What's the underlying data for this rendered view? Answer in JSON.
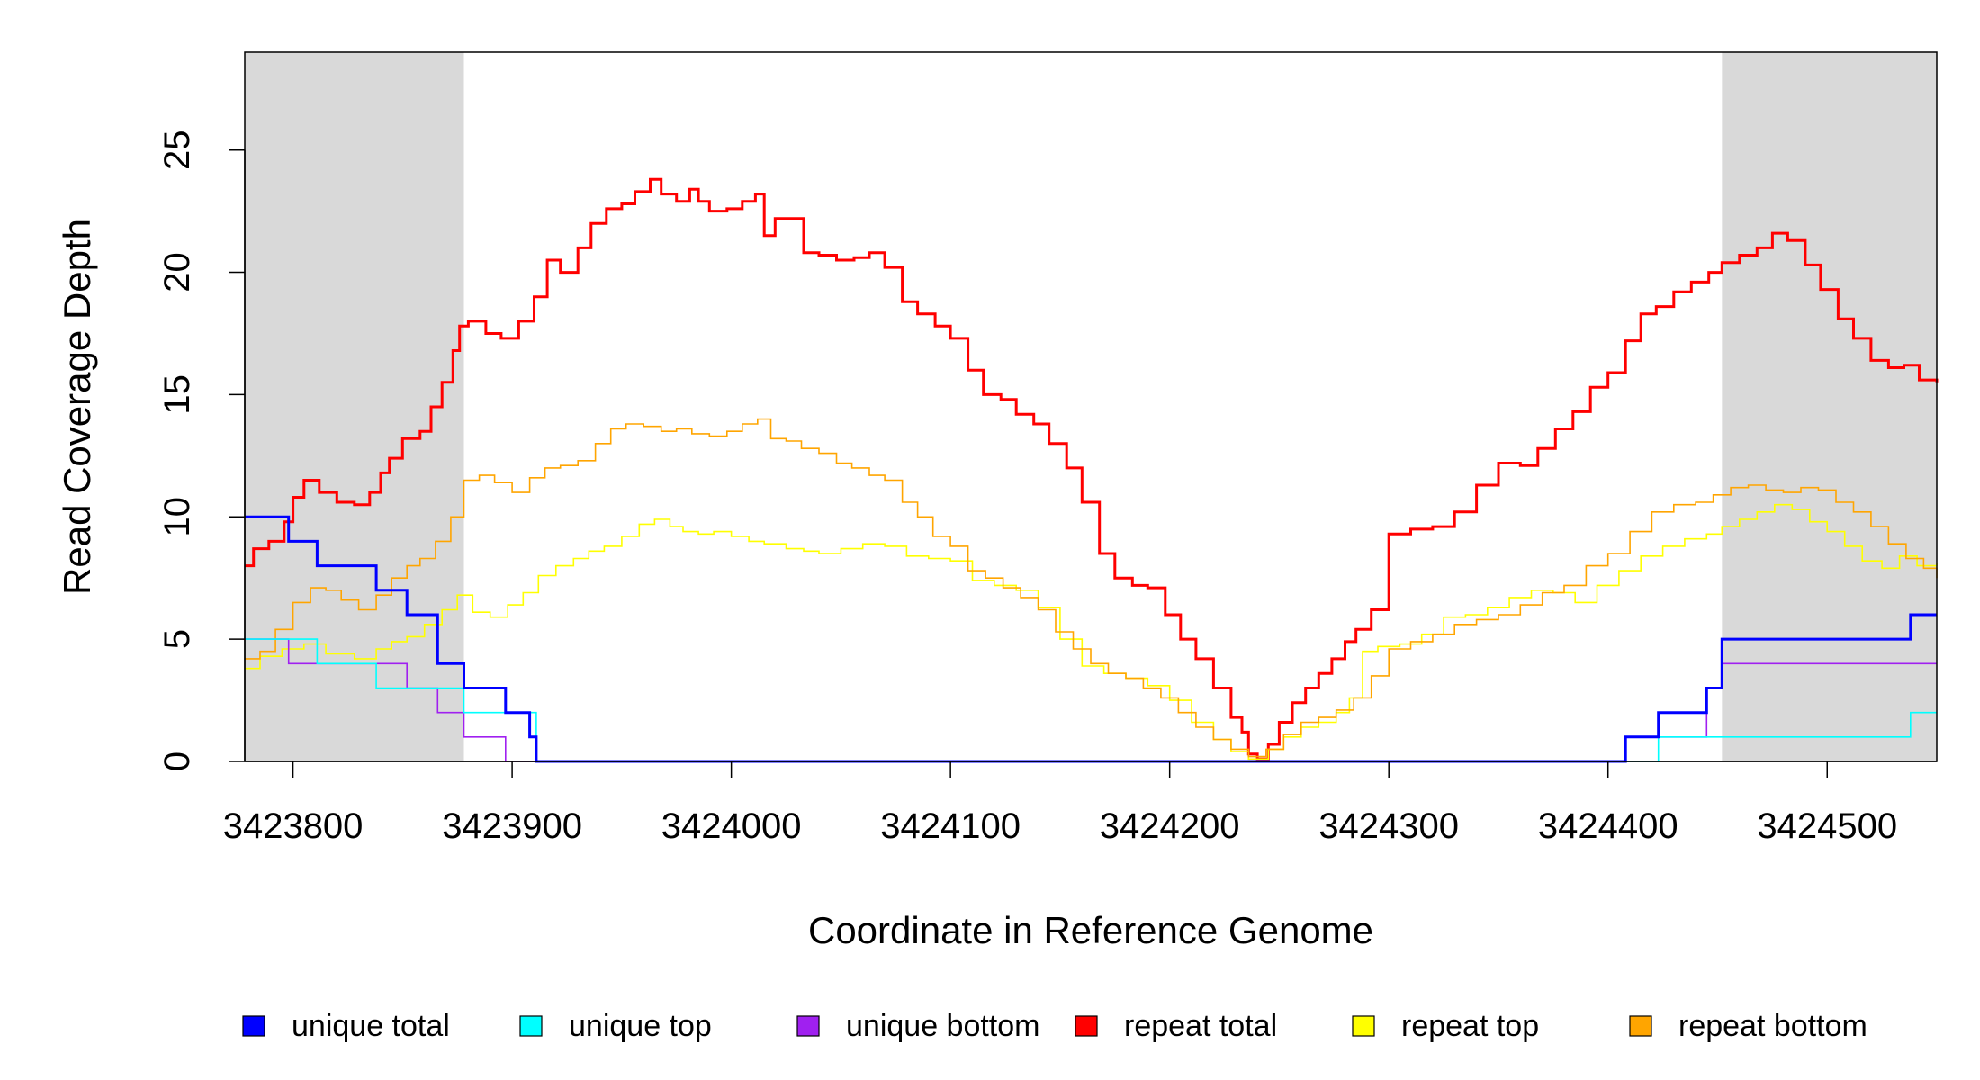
{
  "chart_data": {
    "type": "line",
    "title": "",
    "xlabel": "Coordinate in Reference Genome",
    "ylabel": "Read Coverage Depth",
    "xlim": [
      3423778,
      3424550
    ],
    "ylim": [
      0,
      29
    ],
    "x_ticks": [
      3423800,
      3423900,
      3424000,
      3424100,
      3424200,
      3424300,
      3424400,
      3424500
    ],
    "y_ticks": [
      0,
      5,
      10,
      15,
      20,
      25
    ],
    "grid": false,
    "step": true,
    "shaded_regions": [
      {
        "x0": 3423778,
        "x1": 3423878,
        "color": "#d9d9d9"
      },
      {
        "x0": 3424452,
        "x1": 3424550,
        "color": "#d9d9d9"
      }
    ],
    "legend_position": "bottom",
    "series": [
      {
        "name": "unique total",
        "color": "#0000ff",
        "x": [
          3423778,
          3423798,
          3423811,
          3423838,
          3423852,
          3423866,
          3423878,
          3423897,
          3423908,
          3423911,
          3424408,
          3424423,
          3424445,
          3424452,
          3424538,
          3424550
        ],
        "y": [
          10,
          9,
          8,
          7,
          6,
          4,
          3,
          2,
          1,
          0,
          1,
          2,
          3,
          5,
          6,
          6
        ]
      },
      {
        "name": "unique top",
        "color": "#00ffff",
        "x": [
          3423778,
          3423788,
          3423811,
          3423838,
          3423878,
          3423911,
          3424423,
          3424538,
          3424550
        ],
        "y": [
          5,
          5,
          4,
          3,
          2,
          0,
          1,
          2,
          2
        ]
      },
      {
        "name": "unique bottom",
        "color": "#a020f0",
        "x": [
          3423778,
          3423798,
          3423852,
          3423866,
          3423878,
          3423897,
          3424408,
          3424423,
          3424445,
          3424452,
          3424550
        ],
        "y": [
          5,
          4,
          3,
          2,
          1,
          0,
          1,
          1,
          3,
          4,
          4
        ]
      },
      {
        "name": "repeat total",
        "color": "#ff0000",
        "x": [
          3423778,
          3423782,
          3423789,
          3423796,
          3423800,
          3423805,
          3423812,
          3423820,
          3423828,
          3423835,
          3423840,
          3423844,
          3423850,
          3423858,
          3423863,
          3423868,
          3423873,
          3423876,
          3423880,
          3423888,
          3423895,
          3423903,
          3423910,
          3423916,
          3423922,
          3423930,
          3423936,
          3423943,
          3423950,
          3423956,
          3423963,
          3423968,
          3423975,
          3423981,
          3423985,
          3423990,
          3423998,
          3424005,
          3424011,
          3424015,
          3424020,
          3424025,
          3424033,
          3424040,
          3424048,
          3424056,
          3424063,
          3424070,
          3424078,
          3424085,
          3424093,
          3424100,
          3424108,
          3424115,
          3424123,
          3424130,
          3424138,
          3424145,
          3424153,
          3424160,
          3424168,
          3424175,
          3424183,
          3424190,
          3424198,
          3424205,
          3424212,
          3424220,
          3424228,
          3424233,
          3424236,
          3424240,
          3424245,
          3424250,
          3424256,
          3424262,
          3424268,
          3424274,
          3424280,
          3424285,
          3424292,
          3424300,
          3424310,
          3424320,
          3424330,
          3424340,
          3424350,
          3424360,
          3424368,
          3424376,
          3424384,
          3424392,
          3424400,
          3424408,
          3424415,
          3424422,
          3424430,
          3424438,
          3424446,
          3424452,
          3424460,
          3424468,
          3424475,
          3424482,
          3424490,
          3424497,
          3424505,
          3424512,
          3424520,
          3424528,
          3424535,
          3424542,
          3424550
        ],
        "y": [
          8,
          8.7,
          9,
          9.8,
          10.8,
          11.5,
          11,
          10.6,
          10.5,
          11,
          11.8,
          12.4,
          13.2,
          13.5,
          14.5,
          15.5,
          16.8,
          17.8,
          18,
          17.5,
          17.3,
          18,
          19,
          20.5,
          20,
          21,
          22,
          22.6,
          22.8,
          23.3,
          23.8,
          23.2,
          22.9,
          23.4,
          22.9,
          22.5,
          22.6,
          22.9,
          23.2,
          21.5,
          22.2,
          22.2,
          20.8,
          20.7,
          20.5,
          20.6,
          20.8,
          20.2,
          18.8,
          18.3,
          17.8,
          17.3,
          16,
          15,
          14.8,
          14.2,
          13.8,
          13,
          12,
          10.6,
          8.5,
          7.5,
          7.2,
          7.1,
          6,
          5,
          4.2,
          3,
          1.8,
          1.2,
          0.3,
          0.1,
          0.7,
          1.6,
          2.4,
          3,
          3.6,
          4.2,
          4.9,
          5.4,
          6.2,
          9.3,
          9.5,
          9.6,
          10.2,
          11.3,
          12.2,
          12.1,
          12.8,
          13.6,
          14.3,
          15.3,
          15.9,
          17.2,
          18.3,
          18.6,
          19.2,
          19.6,
          20,
          20.4,
          20.7,
          21,
          21.6,
          21.3,
          20.3,
          19.3,
          18.1,
          17.3,
          16.4,
          16.1,
          16.2,
          15.6,
          15.5
        ]
      },
      {
        "name": "repeat top",
        "color": "#ffff00",
        "x": [
          3423778,
          3423785,
          3423795,
          3423805,
          3423815,
          3423828,
          3423838,
          3423845,
          3423852,
          3423860,
          3423868,
          3423875,
          3423882,
          3423890,
          3423898,
          3423905,
          3423912,
          3423920,
          3423928,
          3423935,
          3423942,
          3423950,
          3423958,
          3423965,
          3423972,
          3423978,
          3423985,
          3423992,
          3424000,
          3424008,
          3424015,
          3424025,
          3424033,
          3424040,
          3424050,
          3424060,
          3424070,
          3424080,
          3424090,
          3424100,
          3424110,
          3424120,
          3424130,
          3424140,
          3424150,
          3424160,
          3424170,
          3424180,
          3424190,
          3424200,
          3424210,
          3424220,
          3424228,
          3424236,
          3424245,
          3424252,
          3424260,
          3424268,
          3424276,
          3424282,
          3424288,
          3424295,
          3424305,
          3424315,
          3424325,
          3424335,
          3424345,
          3424355,
          3424365,
          3424375,
          3424385,
          3424395,
          3424405,
          3424415,
          3424425,
          3424435,
          3424445,
          3424452,
          3424460,
          3424468,
          3424476,
          3424484,
          3424492,
          3424500,
          3424508,
          3424516,
          3424525,
          3424533,
          3424541,
          3424550
        ],
        "y": [
          3.8,
          4.3,
          4.6,
          4.8,
          4.4,
          4.2,
          4.6,
          4.9,
          5.1,
          5.6,
          6.2,
          6.8,
          6.1,
          5.9,
          6.4,
          6.9,
          7.6,
          8.0,
          8.3,
          8.6,
          8.8,
          9.2,
          9.7,
          9.9,
          9.6,
          9.4,
          9.3,
          9.4,
          9.2,
          9.0,
          8.9,
          8.7,
          8.6,
          8.5,
          8.7,
          8.9,
          8.8,
          8.4,
          8.3,
          8.2,
          7.4,
          7.2,
          7.0,
          6.3,
          5.0,
          3.9,
          3.6,
          3.4,
          3.1,
          2.5,
          1.6,
          0.9,
          0.4,
          0.1,
          0.5,
          1.0,
          1.4,
          1.6,
          2.0,
          2.6,
          4.5,
          4.7,
          4.8,
          5.2,
          5.9,
          6.0,
          6.3,
          6.7,
          7.0,
          6.9,
          6.5,
          7.2,
          7.8,
          8.4,
          8.8,
          9.1,
          9.3,
          9.6,
          9.9,
          10.2,
          10.5,
          10.3,
          9.8,
          9.4,
          8.8,
          8.2,
          7.9,
          8.4,
          8.0,
          8.1
        ]
      },
      {
        "name": "repeat bottom",
        "color": "#ffa500",
        "x": [
          3423778,
          3423785,
          3423792,
          3423800,
          3423808,
          3423815,
          3423822,
          3423830,
          3423838,
          3423845,
          3423852,
          3423858,
          3423865,
          3423872,
          3423878,
          3423885,
          3423892,
          3423900,
          3423908,
          3423915,
          3423922,
          3423930,
          3423938,
          3423945,
          3423952,
          3423960,
          3423968,
          3423975,
          3423982,
          3423990,
          3423998,
          3424005,
          3424012,
          3424018,
          3424025,
          3424032,
          3424040,
          3424048,
          3424055,
          3424063,
          3424070,
          3424078,
          3424085,
          3424092,
          3424100,
          3424108,
          3424116,
          3424124,
          3424132,
          3424140,
          3424148,
          3424156,
          3424164,
          3424172,
          3424180,
          3424188,
          3424196,
          3424204,
          3424212,
          3424220,
          3424228,
          3424236,
          3424244,
          3424252,
          3424260,
          3424268,
          3424276,
          3424284,
          3424292,
          3424300,
          3424310,
          3424320,
          3424330,
          3424340,
          3424350,
          3424360,
          3424370,
          3424380,
          3424390,
          3424400,
          3424410,
          3424420,
          3424430,
          3424440,
          3424448,
          3424456,
          3424464,
          3424472,
          3424480,
          3424488,
          3424496,
          3424504,
          3424512,
          3424520,
          3424528,
          3424536,
          3424544,
          3424550
        ],
        "y": [
          4.2,
          4.5,
          5.4,
          6.5,
          7.1,
          7.0,
          6.6,
          6.2,
          6.8,
          7.5,
          8.0,
          8.3,
          9.0,
          10.0,
          11.5,
          11.7,
          11.4,
          11.0,
          11.6,
          12.0,
          12.1,
          12.3,
          13.0,
          13.6,
          13.8,
          13.7,
          13.5,
          13.6,
          13.4,
          13.3,
          13.5,
          13.8,
          14.0,
          13.2,
          13.1,
          12.8,
          12.6,
          12.2,
          12.0,
          11.7,
          11.5,
          10.6,
          10.0,
          9.2,
          8.8,
          7.8,
          7.5,
          7.1,
          6.7,
          6.2,
          5.3,
          4.6,
          4.0,
          3.6,
          3.4,
          3.0,
          2.6,
          2.0,
          1.4,
          0.9,
          0.5,
          0.2,
          0.5,
          1.1,
          1.6,
          1.8,
          2.1,
          2.6,
          3.5,
          4.6,
          4.9,
          5.2,
          5.6,
          5.8,
          6.0,
          6.4,
          6.9,
          7.2,
          8.0,
          8.5,
          9.4,
          10.2,
          10.5,
          10.6,
          10.9,
          11.2,
          11.3,
          11.1,
          11.0,
          11.2,
          11.1,
          10.6,
          10.2,
          9.6,
          8.9,
          8.3,
          7.9,
          7.5
        ]
      }
    ]
  }
}
